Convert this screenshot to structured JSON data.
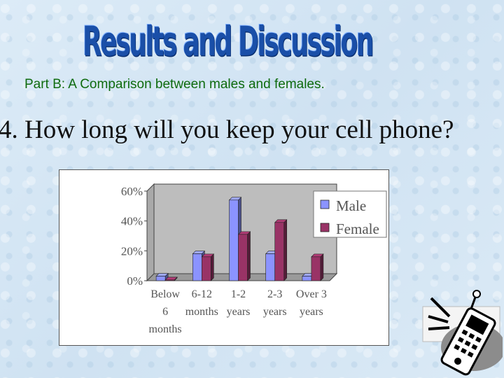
{
  "slide": {
    "title": "Results and Discussion",
    "subtitle": "Part B:  A Comparison between males and females.",
    "question": "4. How long will you keep your cell phone?"
  },
  "chart_data": {
    "type": "bar",
    "categories": [
      [
        "Below",
        "6",
        "months"
      ],
      [
        "6-12",
        "months"
      ],
      [
        "1-2",
        "years"
      ],
      [
        "2-3",
        "years"
      ],
      [
        "Over 3",
        "years"
      ]
    ],
    "series": [
      {
        "name": "Male",
        "values": [
          3,
          18,
          54,
          18,
          3
        ],
        "color": "#8b93ff"
      },
      {
        "name": "Female",
        "values": [
          0.5,
          16,
          31,
          39,
          16
        ],
        "color": "#993366"
      }
    ],
    "ylim": [
      0,
      60
    ],
    "yticks": [
      "0%",
      "20%",
      "40%",
      "60%"
    ],
    "ytick_values": [
      0,
      20,
      40,
      60
    ],
    "grid": false,
    "legend": "right",
    "style": "3d"
  },
  "decoration": {
    "icon": "cell-phone-icon"
  }
}
